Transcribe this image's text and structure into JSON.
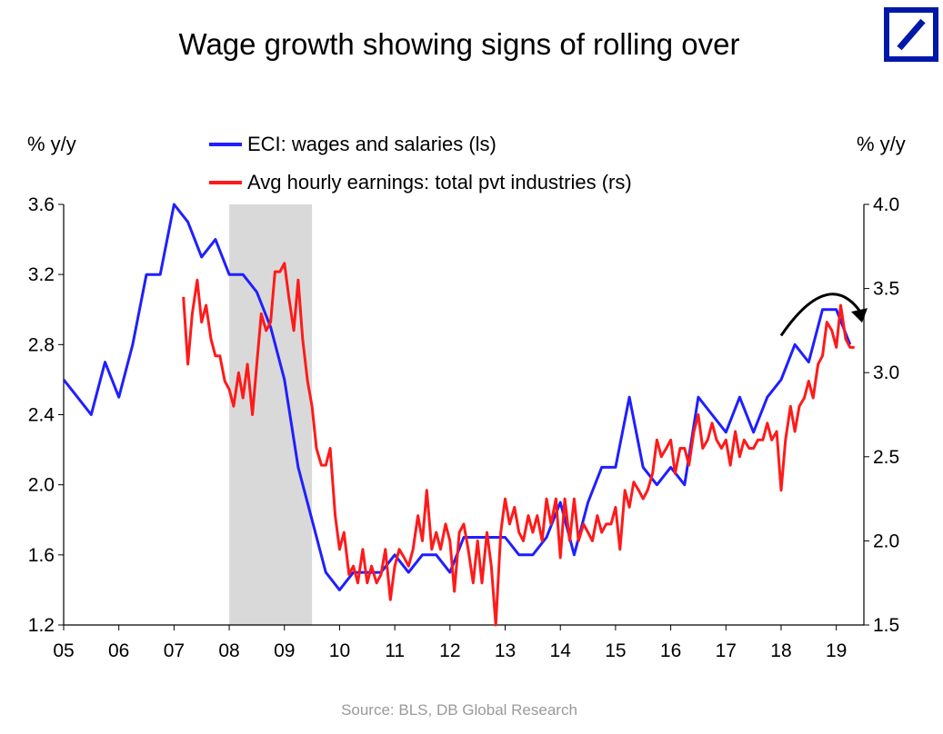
{
  "title": "Wage growth showing signs of rolling over",
  "source": "Source: BLS, DB Global Research",
  "logo": {
    "icon": "deutsche-bank-logo-icon",
    "color": "#0018a8"
  },
  "chart_data": {
    "type": "line",
    "y_left_unit": "% y/y",
    "y_right_unit": "% y/y",
    "ylim_left": [
      1.2,
      3.6
    ],
    "ylim_right": [
      1.5,
      4.0
    ],
    "left_ticks": [
      "3.6",
      "3.2",
      "2.8",
      "2.4",
      "2.0",
      "1.6",
      "1.2"
    ],
    "right_ticks": [
      "4.0",
      "3.5",
      "3.0",
      "2.5",
      "2.0",
      "1.5"
    ],
    "x_ticks": [
      "05",
      "06",
      "07",
      "08",
      "09",
      "10",
      "11",
      "12",
      "13",
      "14",
      "15",
      "16",
      "17",
      "18",
      "19"
    ],
    "xlim": [
      2005,
      2019.5
    ],
    "recession_shade": [
      2008.0,
      2009.5
    ],
    "shade_color": "#d9d9d9",
    "annotation": "curved arrow indicating rolling over",
    "series": [
      {
        "name": "ECI: wages and salaries (ls)",
        "axis": "left",
        "color": "#1f1fff",
        "points": [
          [
            2005.0,
            2.6
          ],
          [
            2005.25,
            2.5
          ],
          [
            2005.5,
            2.4
          ],
          [
            2005.75,
            2.7
          ],
          [
            2006.0,
            2.5
          ],
          [
            2006.25,
            2.8
          ],
          [
            2006.5,
            3.2
          ],
          [
            2006.75,
            3.2
          ],
          [
            2007.0,
            3.6
          ],
          [
            2007.25,
            3.5
          ],
          [
            2007.5,
            3.3
          ],
          [
            2007.75,
            3.4
          ],
          [
            2008.0,
            3.2
          ],
          [
            2008.25,
            3.2
          ],
          [
            2008.5,
            3.1
          ],
          [
            2008.75,
            2.9
          ],
          [
            2009.0,
            2.6
          ],
          [
            2009.25,
            2.1
          ],
          [
            2009.5,
            1.8
          ],
          [
            2009.75,
            1.5
          ],
          [
            2010.0,
            1.4
          ],
          [
            2010.25,
            1.5
          ],
          [
            2010.5,
            1.5
          ],
          [
            2010.75,
            1.5
          ],
          [
            2011.0,
            1.6
          ],
          [
            2011.25,
            1.5
          ],
          [
            2011.5,
            1.6
          ],
          [
            2011.75,
            1.6
          ],
          [
            2012.0,
            1.5
          ],
          [
            2012.25,
            1.7
          ],
          [
            2012.5,
            1.7
          ],
          [
            2012.75,
            1.7
          ],
          [
            2013.0,
            1.7
          ],
          [
            2013.25,
            1.6
          ],
          [
            2013.5,
            1.6
          ],
          [
            2013.75,
            1.7
          ],
          [
            2014.0,
            1.9
          ],
          [
            2014.25,
            1.6
          ],
          [
            2014.5,
            1.9
          ],
          [
            2014.75,
            2.1
          ],
          [
            2015.0,
            2.1
          ],
          [
            2015.25,
            2.5
          ],
          [
            2015.5,
            2.1
          ],
          [
            2015.75,
            2.0
          ],
          [
            2016.0,
            2.1
          ],
          [
            2016.25,
            2.0
          ],
          [
            2016.5,
            2.5
          ],
          [
            2016.75,
            2.4
          ],
          [
            2017.0,
            2.3
          ],
          [
            2017.25,
            2.5
          ],
          [
            2017.5,
            2.3
          ],
          [
            2017.75,
            2.5
          ],
          [
            2018.0,
            2.6
          ],
          [
            2018.25,
            2.8
          ],
          [
            2018.5,
            2.7
          ],
          [
            2018.75,
            3.0
          ],
          [
            2019.0,
            3.0
          ],
          [
            2019.25,
            2.8
          ]
        ]
      },
      {
        "name": "Avg hourly earnings: total pvt industries (rs)",
        "axis": "right",
        "color": "#ff1a1a",
        "points": [
          [
            2007.17,
            3.45
          ],
          [
            2007.25,
            3.05
          ],
          [
            2007.33,
            3.35
          ],
          [
            2007.42,
            3.55
          ],
          [
            2007.5,
            3.3
          ],
          [
            2007.58,
            3.4
          ],
          [
            2007.67,
            3.2
          ],
          [
            2007.75,
            3.1
          ],
          [
            2007.83,
            3.1
          ],
          [
            2007.92,
            2.95
          ],
          [
            2008.0,
            2.9
          ],
          [
            2008.08,
            2.8
          ],
          [
            2008.17,
            3.0
          ],
          [
            2008.25,
            2.85
          ],
          [
            2008.33,
            3.05
          ],
          [
            2008.42,
            2.75
          ],
          [
            2008.5,
            3.05
          ],
          [
            2008.58,
            3.35
          ],
          [
            2008.67,
            3.25
          ],
          [
            2008.75,
            3.3
          ],
          [
            2008.83,
            3.6
          ],
          [
            2008.92,
            3.6
          ],
          [
            2009.0,
            3.65
          ],
          [
            2009.08,
            3.45
          ],
          [
            2009.17,
            3.25
          ],
          [
            2009.25,
            3.55
          ],
          [
            2009.33,
            3.2
          ],
          [
            2009.42,
            2.95
          ],
          [
            2009.5,
            2.8
          ],
          [
            2009.58,
            2.55
          ],
          [
            2009.67,
            2.45
          ],
          [
            2009.75,
            2.45
          ],
          [
            2009.83,
            2.55
          ],
          [
            2009.92,
            2.15
          ],
          [
            2010.0,
            1.95
          ],
          [
            2010.08,
            2.05
          ],
          [
            2010.17,
            1.8
          ],
          [
            2010.25,
            1.85
          ],
          [
            2010.33,
            1.75
          ],
          [
            2010.42,
            1.95
          ],
          [
            2010.5,
            1.75
          ],
          [
            2010.58,
            1.85
          ],
          [
            2010.67,
            1.75
          ],
          [
            2010.75,
            1.8
          ],
          [
            2010.83,
            1.95
          ],
          [
            2010.92,
            1.65
          ],
          [
            2011.0,
            1.85
          ],
          [
            2011.08,
            1.95
          ],
          [
            2011.17,
            1.9
          ],
          [
            2011.25,
            1.85
          ],
          [
            2011.33,
            1.95
          ],
          [
            2011.42,
            2.15
          ],
          [
            2011.5,
            2.0
          ],
          [
            2011.58,
            2.3
          ],
          [
            2011.67,
            1.95
          ],
          [
            2011.75,
            2.05
          ],
          [
            2011.83,
            1.95
          ],
          [
            2011.92,
            2.1
          ],
          [
            2012.0,
            2.0
          ],
          [
            2012.08,
            1.7
          ],
          [
            2012.17,
            2.05
          ],
          [
            2012.25,
            2.1
          ],
          [
            2012.33,
            1.95
          ],
          [
            2012.42,
            1.75
          ],
          [
            2012.5,
            2.0
          ],
          [
            2012.58,
            1.75
          ],
          [
            2012.67,
            2.05
          ],
          [
            2012.75,
            1.85
          ],
          [
            2012.83,
            1.5
          ],
          [
            2012.92,
            2.05
          ],
          [
            2013.0,
            2.25
          ],
          [
            2013.08,
            2.1
          ],
          [
            2013.17,
            2.2
          ],
          [
            2013.25,
            2.05
          ],
          [
            2013.33,
            2.0
          ],
          [
            2013.42,
            2.15
          ],
          [
            2013.5,
            2.05
          ],
          [
            2013.58,
            2.15
          ],
          [
            2013.67,
            2.0
          ],
          [
            2013.75,
            2.25
          ],
          [
            2013.83,
            2.1
          ],
          [
            2013.92,
            2.25
          ],
          [
            2014.0,
            1.9
          ],
          [
            2014.08,
            2.25
          ],
          [
            2014.17,
            2.0
          ],
          [
            2014.25,
            2.25
          ],
          [
            2014.33,
            2.0
          ],
          [
            2014.42,
            2.1
          ],
          [
            2014.5,
            2.05
          ],
          [
            2014.58,
            2.0
          ],
          [
            2014.67,
            2.15
          ],
          [
            2014.75,
            2.05
          ],
          [
            2014.83,
            2.1
          ],
          [
            2014.92,
            2.1
          ],
          [
            2015.0,
            2.2
          ],
          [
            2015.08,
            1.95
          ],
          [
            2015.17,
            2.3
          ],
          [
            2015.25,
            2.2
          ],
          [
            2015.33,
            2.35
          ],
          [
            2015.42,
            2.3
          ],
          [
            2015.5,
            2.25
          ],
          [
            2015.58,
            2.3
          ],
          [
            2015.67,
            2.4
          ],
          [
            2015.75,
            2.6
          ],
          [
            2015.83,
            2.5
          ],
          [
            2015.92,
            2.55
          ],
          [
            2016.0,
            2.6
          ],
          [
            2016.08,
            2.4
          ],
          [
            2016.17,
            2.55
          ],
          [
            2016.25,
            2.55
          ],
          [
            2016.33,
            2.45
          ],
          [
            2016.42,
            2.65
          ],
          [
            2016.5,
            2.75
          ],
          [
            2016.58,
            2.55
          ],
          [
            2016.67,
            2.6
          ],
          [
            2016.75,
            2.7
          ],
          [
            2016.83,
            2.6
          ],
          [
            2016.92,
            2.55
          ],
          [
            2017.0,
            2.6
          ],
          [
            2017.08,
            2.45
          ],
          [
            2017.17,
            2.65
          ],
          [
            2017.25,
            2.5
          ],
          [
            2017.33,
            2.6
          ],
          [
            2017.42,
            2.55
          ],
          [
            2017.5,
            2.55
          ],
          [
            2017.58,
            2.6
          ],
          [
            2017.67,
            2.6
          ],
          [
            2017.75,
            2.7
          ],
          [
            2017.83,
            2.6
          ],
          [
            2017.92,
            2.65
          ],
          [
            2018.0,
            2.3
          ],
          [
            2018.08,
            2.6
          ],
          [
            2018.17,
            2.8
          ],
          [
            2018.25,
            2.65
          ],
          [
            2018.33,
            2.8
          ],
          [
            2018.42,
            2.85
          ],
          [
            2018.5,
            2.95
          ],
          [
            2018.58,
            2.85
          ],
          [
            2018.67,
            3.05
          ],
          [
            2018.75,
            3.1
          ],
          [
            2018.83,
            3.3
          ],
          [
            2018.92,
            3.25
          ],
          [
            2019.0,
            3.15
          ],
          [
            2019.08,
            3.4
          ],
          [
            2019.17,
            3.2
          ],
          [
            2019.25,
            3.15
          ],
          [
            2019.33,
            3.15
          ]
        ]
      }
    ]
  }
}
